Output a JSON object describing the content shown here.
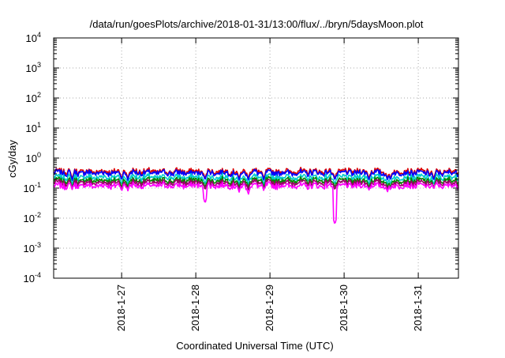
{
  "chart_data": {
    "type": "line",
    "title": "/data/run/goesPlots/archive/2018-01-31/13:00/flux/../bryn/5daysMoon.plot",
    "xlabel": "Coordinated Universal Time (UTC)",
    "ylabel": "cGy/day",
    "y_scale": "log",
    "ylim": [
      0.0001,
      10000
    ],
    "xlim": [
      "2018-01-26 02:00",
      "2018-01-31 13:00"
    ],
    "grid": true,
    "legend": "none",
    "x_ticks": [
      {
        "x": "2018-01-27 00:00",
        "label": "2018-1-27"
      },
      {
        "x": "2018-01-28 00:00",
        "label": "2018-1-28"
      },
      {
        "x": "2018-01-29 00:00",
        "label": "2018-1-29"
      },
      {
        "x": "2018-01-30 00:00",
        "label": "2018-1-30"
      },
      {
        "x": "2018-01-31 00:00",
        "label": "2018-1-31"
      }
    ],
    "y_ticks": [
      {
        "value": 0.0001,
        "base": "10",
        "exp": "-4"
      },
      {
        "value": 0.001,
        "base": "10",
        "exp": "-3"
      },
      {
        "value": 0.01,
        "base": "10",
        "exp": "-2"
      },
      {
        "value": 0.1,
        "base": "10",
        "exp": "-1"
      },
      {
        "value": 1,
        "base": "10",
        "exp": "0"
      },
      {
        "value": 10,
        "base": "10",
        "exp": "1"
      },
      {
        "value": 100,
        "base": "10",
        "exp": "2"
      },
      {
        "value": 1000,
        "base": "10",
        "exp": "3"
      },
      {
        "value": 10000,
        "base": "10",
        "exp": "4"
      }
    ],
    "series_colors": [
      "#dd0000",
      "#0000ff",
      "#00cccc",
      "#008800",
      "#990066",
      "#ff00ff"
    ],
    "series_levels": [
      0.36,
      0.32,
      0.23,
      0.18,
      0.15,
      0.12
    ],
    "dips": [
      {
        "x": "2018-01-26 08:00",
        "value": 0.09
      },
      {
        "x": "2018-01-27 00:00",
        "value": 0.075
      },
      {
        "x": "2018-01-27 02:00",
        "value": 0.08
      },
      {
        "x": "2018-01-28 03:00",
        "value": 0.03
      },
      {
        "x": "2018-01-28 14:00",
        "value": 0.07
      },
      {
        "x": "2018-01-28 17:00",
        "value": 0.06
      },
      {
        "x": "2018-01-28 22:00",
        "value": 0.08
      },
      {
        "x": "2018-01-29 21:00",
        "value": 0.006
      },
      {
        "x": "2018-01-30 08:00",
        "value": 0.08
      },
      {
        "x": "2018-01-30 14:00",
        "value": 0.07
      },
      {
        "x": "2018-01-30 15:00",
        "value": 0.08
      },
      {
        "x": "2018-01-31 05:00",
        "value": 0.09
      }
    ]
  }
}
